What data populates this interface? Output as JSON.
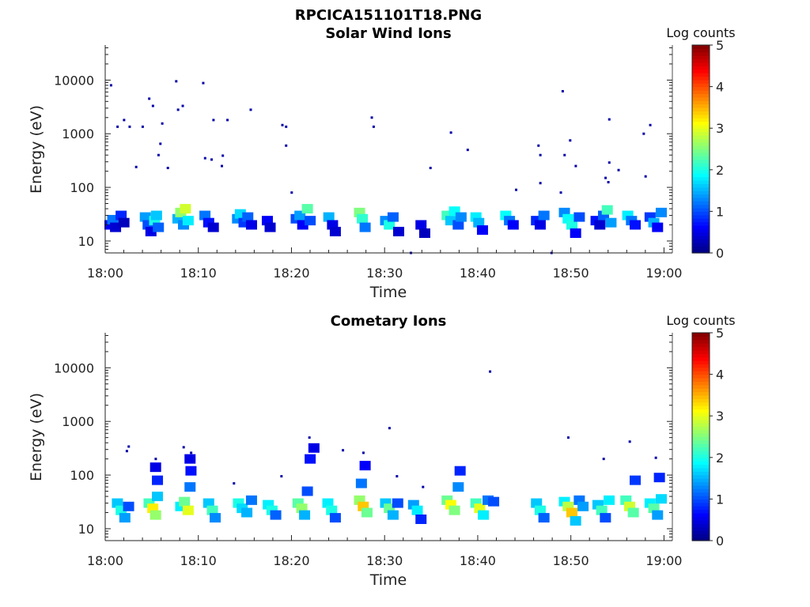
{
  "figure": {
    "title": "RPCICA151101T18.PNG"
  },
  "colorbar": {
    "label": "Log counts",
    "ticks": [
      "0",
      "1",
      "2",
      "3",
      "4",
      "5"
    ],
    "range": [
      0,
      5
    ],
    "colormap": "jet"
  },
  "chart_data": [
    {
      "type": "heatmap",
      "title": "Solar Wind Ions",
      "xlabel": "Time",
      "ylabel": "Energy (eV)",
      "x_ticks": [
        "18:00",
        "18:10",
        "18:20",
        "18:30",
        "18:40",
        "18:50",
        "19:00"
      ],
      "y_ticks": [
        "10",
        "100",
        "1000",
        "10000"
      ],
      "y_scale": "log",
      "xlim": [
        "18:00",
        "19:00"
      ],
      "ylim": [
        6,
        45000
      ],
      "colorbar_label": "Log counts",
      "colorbar_range": [
        0,
        5
      ],
      "cells": [
        {
          "t": 0.0,
          "e": 20,
          "v": 0.6
        },
        {
          "t": 0.3,
          "e": 25,
          "v": 1.2
        },
        {
          "t": 0.6,
          "e": 18,
          "v": 0.4
        },
        {
          "t": 1.2,
          "e": 30,
          "v": 0.8
        },
        {
          "t": 1.5,
          "e": 22,
          "v": 0.3
        },
        {
          "t": 3.8,
          "e": 28,
          "v": 1.4
        },
        {
          "t": 4.1,
          "e": 20,
          "v": 1.0
        },
        {
          "t": 4.4,
          "e": 15,
          "v": 0.5
        },
        {
          "t": 4.8,
          "e": 24,
          "v": 2.0
        },
        {
          "t": 5.0,
          "e": 30,
          "v": 1.6
        },
        {
          "t": 5.2,
          "e": 18,
          "v": 1.1
        },
        {
          "t": 7.3,
          "e": 26,
          "v": 1.5
        },
        {
          "t": 7.6,
          "e": 34,
          "v": 2.6
        },
        {
          "t": 7.9,
          "e": 20,
          "v": 1.3
        },
        {
          "t": 8.1,
          "e": 40,
          "v": 2.9
        },
        {
          "t": 8.4,
          "e": 24,
          "v": 1.8
        },
        {
          "t": 10.2,
          "e": 30,
          "v": 1.2
        },
        {
          "t": 10.6,
          "e": 22,
          "v": 0.7
        },
        {
          "t": 11.1,
          "e": 18,
          "v": 0.4
        },
        {
          "t": 13.7,
          "e": 26,
          "v": 1.3
        },
        {
          "t": 14.0,
          "e": 32,
          "v": 1.7
        },
        {
          "t": 14.4,
          "e": 22,
          "v": 0.9
        },
        {
          "t": 14.8,
          "e": 28,
          "v": 1.1
        },
        {
          "t": 15.2,
          "e": 20,
          "v": 0.5
        },
        {
          "t": 16.9,
          "e": 24,
          "v": 0.6
        },
        {
          "t": 17.2,
          "e": 18,
          "v": 0.4
        },
        {
          "t": 20.0,
          "e": 26,
          "v": 1.0
        },
        {
          "t": 20.4,
          "e": 30,
          "v": 1.4
        },
        {
          "t": 20.7,
          "e": 20,
          "v": 0.6
        },
        {
          "t": 21.2,
          "e": 40,
          "v": 2.3
        },
        {
          "t": 21.5,
          "e": 24,
          "v": 1.0
        },
        {
          "t": 23.5,
          "e": 28,
          "v": 1.5
        },
        {
          "t": 23.9,
          "e": 20,
          "v": 0.5
        },
        {
          "t": 24.2,
          "e": 15,
          "v": 0.4
        },
        {
          "t": 26.8,
          "e": 34,
          "v": 2.5
        },
        {
          "t": 27.1,
          "e": 26,
          "v": 2.1
        },
        {
          "t": 27.4,
          "e": 18,
          "v": 1.2
        },
        {
          "t": 29.6,
          "e": 24,
          "v": 1.3
        },
        {
          "t": 30.0,
          "e": 20,
          "v": 2.0
        },
        {
          "t": 30.4,
          "e": 28,
          "v": 1.1
        },
        {
          "t": 31.0,
          "e": 15,
          "v": 0.4
        },
        {
          "t": 33.4,
          "e": 20,
          "v": 0.5
        },
        {
          "t": 33.8,
          "e": 14,
          "v": 0.3
        },
        {
          "t": 36.2,
          "e": 30,
          "v": 2.2
        },
        {
          "t": 36.6,
          "e": 24,
          "v": 1.6
        },
        {
          "t": 37.0,
          "e": 36,
          "v": 1.9
        },
        {
          "t": 37.4,
          "e": 20,
          "v": 1.0
        },
        {
          "t": 37.7,
          "e": 28,
          "v": 1.3
        },
        {
          "t": 39.3,
          "e": 28,
          "v": 1.8
        },
        {
          "t": 39.6,
          "e": 22,
          "v": 1.5
        },
        {
          "t": 40.0,
          "e": 16,
          "v": 0.6
        },
        {
          "t": 42.5,
          "e": 30,
          "v": 1.9
        },
        {
          "t": 42.9,
          "e": 24,
          "v": 1.2
        },
        {
          "t": 43.3,
          "e": 20,
          "v": 0.6
        },
        {
          "t": 45.8,
          "e": 24,
          "v": 0.8
        },
        {
          "t": 46.2,
          "e": 20,
          "v": 0.5
        },
        {
          "t": 46.6,
          "e": 30,
          "v": 1.2
        },
        {
          "t": 48.8,
          "e": 34,
          "v": 1.3
        },
        {
          "t": 49.2,
          "e": 26,
          "v": 1.9
        },
        {
          "t": 49.6,
          "e": 20,
          "v": 2.0
        },
        {
          "t": 50.0,
          "e": 14,
          "v": 0.6
        },
        {
          "t": 50.4,
          "e": 28,
          "v": 1.0
        },
        {
          "t": 52.2,
          "e": 24,
          "v": 0.7
        },
        {
          "t": 52.6,
          "e": 20,
          "v": 0.4
        },
        {
          "t": 53.0,
          "e": 30,
          "v": 1.1
        },
        {
          "t": 53.4,
          "e": 38,
          "v": 2.2
        },
        {
          "t": 53.8,
          "e": 22,
          "v": 1.4
        },
        {
          "t": 55.6,
          "e": 30,
          "v": 1.8
        },
        {
          "t": 56.0,
          "e": 24,
          "v": 1.2
        },
        {
          "t": 56.4,
          "e": 20,
          "v": 0.7
        },
        {
          "t": 58.0,
          "e": 28,
          "v": 0.9
        },
        {
          "t": 58.4,
          "e": 22,
          "v": 1.5
        },
        {
          "t": 58.8,
          "e": 18,
          "v": 0.6
        },
        {
          "t": 59.2,
          "e": 34,
          "v": 1.3
        }
      ],
      "scatter": [
        {
          "t": 0.5,
          "e": 8000
        },
        {
          "t": 1.2,
          "e": 1350
        },
        {
          "t": 1.9,
          "e": 1800
        },
        {
          "t": 2.5,
          "e": 1350
        },
        {
          "t": 3.2,
          "e": 240
        },
        {
          "t": 3.9,
          "e": 1350
        },
        {
          "t": 4.6,
          "e": 4500
        },
        {
          "t": 5.0,
          "e": 3300
        },
        {
          "t": 5.6,
          "e": 400
        },
        {
          "t": 5.8,
          "e": 650
        },
        {
          "t": 6.0,
          "e": 1550
        },
        {
          "t": 6.6,
          "e": 230
        },
        {
          "t": 7.5,
          "e": 9500
        },
        {
          "t": 7.7,
          "e": 2800
        },
        {
          "t": 8.2,
          "e": 3300
        },
        {
          "t": 10.4,
          "e": 8800
        },
        {
          "t": 10.6,
          "e": 350
        },
        {
          "t": 11.3,
          "e": 330
        },
        {
          "t": 11.5,
          "e": 1800
        },
        {
          "t": 12.4,
          "e": 250
        },
        {
          "t": 12.5,
          "e": 390
        },
        {
          "t": 13.0,
          "e": 1800
        },
        {
          "t": 15.5,
          "e": 2800
        },
        {
          "t": 18.9,
          "e": 1450
        },
        {
          "t": 19.3,
          "e": 1350
        },
        {
          "t": 19.3,
          "e": 600
        },
        {
          "t": 19.9,
          "e": 80
        },
        {
          "t": 28.5,
          "e": 2000
        },
        {
          "t": 28.7,
          "e": 1350
        },
        {
          "t": 32.7,
          "e": 6
        },
        {
          "t": 34.8,
          "e": 230
        },
        {
          "t": 37.0,
          "e": 1050
        },
        {
          "t": 38.8,
          "e": 500
        },
        {
          "t": 44.0,
          "e": 90
        },
        {
          "t": 46.4,
          "e": 600
        },
        {
          "t": 46.6,
          "e": 400
        },
        {
          "t": 46.6,
          "e": 120
        },
        {
          "t": 47.8,
          "e": 6
        },
        {
          "t": 48.8,
          "e": 80
        },
        {
          "t": 49.0,
          "e": 6200
        },
        {
          "t": 49.2,
          "e": 400
        },
        {
          "t": 49.8,
          "e": 750
        },
        {
          "t": 50.4,
          "e": 250
        },
        {
          "t": 53.6,
          "e": 150
        },
        {
          "t": 53.9,
          "e": 125
        },
        {
          "t": 54.0,
          "e": 290
        },
        {
          "t": 54.0,
          "e": 1850
        },
        {
          "t": 55.0,
          "e": 210
        },
        {
          "t": 57.7,
          "e": 1000
        },
        {
          "t": 57.9,
          "e": 160
        },
        {
          "t": 58.4,
          "e": 1450
        }
      ]
    },
    {
      "type": "heatmap",
      "title": "Cometary Ions",
      "xlabel": "Time",
      "ylabel": "Energy (eV)",
      "x_ticks": [
        "18:00",
        "18:10",
        "18:20",
        "18:30",
        "18:40",
        "18:50",
        "19:00"
      ],
      "y_ticks": [
        "10",
        "100",
        "1000",
        "10000"
      ],
      "y_scale": "log",
      "xlim": [
        "18:00",
        "19:00"
      ],
      "ylim": [
        6,
        45000
      ],
      "colorbar_label": "Log counts",
      "colorbar_range": [
        0,
        5
      ],
      "cells": [
        {
          "t": 0.8,
          "e": 30,
          "v": 1.6
        },
        {
          "t": 1.2,
          "e": 22,
          "v": 2.0
        },
        {
          "t": 1.6,
          "e": 16,
          "v": 1.4
        },
        {
          "t": 2.0,
          "e": 26,
          "v": 1.0
        },
        {
          "t": 4.2,
          "e": 30,
          "v": 2.2
        },
        {
          "t": 4.6,
          "e": 24,
          "v": 3.2
        },
        {
          "t": 4.9,
          "e": 18,
          "v": 2.6
        },
        {
          "t": 5.1,
          "e": 40,
          "v": 1.6
        },
        {
          "t": 5.1,
          "e": 80,
          "v": 0.8
        },
        {
          "t": 4.9,
          "e": 140,
          "v": 0.5
        },
        {
          "t": 7.6,
          "e": 26,
          "v": 1.8
        },
        {
          "t": 8.0,
          "e": 32,
          "v": 2.4
        },
        {
          "t": 8.4,
          "e": 22,
          "v": 3.0
        },
        {
          "t": 8.6,
          "e": 60,
          "v": 1.2
        },
        {
          "t": 8.7,
          "e": 120,
          "v": 0.7
        },
        {
          "t": 8.6,
          "e": 200,
          "v": 0.5
        },
        {
          "t": 10.6,
          "e": 30,
          "v": 1.6
        },
        {
          "t": 11.0,
          "e": 22,
          "v": 2.2
        },
        {
          "t": 11.3,
          "e": 16,
          "v": 1.3
        },
        {
          "t": 13.8,
          "e": 30,
          "v": 2.0
        },
        {
          "t": 14.2,
          "e": 24,
          "v": 1.7
        },
        {
          "t": 14.7,
          "e": 20,
          "v": 1.5
        },
        {
          "t": 15.2,
          "e": 34,
          "v": 1.2
        },
        {
          "t": 17.0,
          "e": 28,
          "v": 1.8
        },
        {
          "t": 17.4,
          "e": 22,
          "v": 2.0
        },
        {
          "t": 17.8,
          "e": 18,
          "v": 1.1
        },
        {
          "t": 20.2,
          "e": 30,
          "v": 2.3
        },
        {
          "t": 20.6,
          "e": 24,
          "v": 2.6
        },
        {
          "t": 20.9,
          "e": 18,
          "v": 1.5
        },
        {
          "t": 21.2,
          "e": 50,
          "v": 1.0
        },
        {
          "t": 21.5,
          "e": 200,
          "v": 0.7
        },
        {
          "t": 21.9,
          "e": 320,
          "v": 0.5
        },
        {
          "t": 23.4,
          "e": 30,
          "v": 1.8
        },
        {
          "t": 23.8,
          "e": 22,
          "v": 2.0
        },
        {
          "t": 24.2,
          "e": 16,
          "v": 1.0
        },
        {
          "t": 26.8,
          "e": 34,
          "v": 2.6
        },
        {
          "t": 27.2,
          "e": 26,
          "v": 3.4
        },
        {
          "t": 27.6,
          "e": 20,
          "v": 2.4
        },
        {
          "t": 27.0,
          "e": 70,
          "v": 1.2
        },
        {
          "t": 27.4,
          "e": 150,
          "v": 0.6
        },
        {
          "t": 29.6,
          "e": 30,
          "v": 1.6
        },
        {
          "t": 30.0,
          "e": 24,
          "v": 2.4
        },
        {
          "t": 30.4,
          "e": 18,
          "v": 1.5
        },
        {
          "t": 30.9,
          "e": 30,
          "v": 1.0
        },
        {
          "t": 32.6,
          "e": 28,
          "v": 1.4
        },
        {
          "t": 33.0,
          "e": 22,
          "v": 1.8
        },
        {
          "t": 33.4,
          "e": 15,
          "v": 0.8
        },
        {
          "t": 36.2,
          "e": 34,
          "v": 2.4
        },
        {
          "t": 36.6,
          "e": 28,
          "v": 3.1
        },
        {
          "t": 37.0,
          "e": 22,
          "v": 2.5
        },
        {
          "t": 37.4,
          "e": 60,
          "v": 1.3
        },
        {
          "t": 37.6,
          "e": 120,
          "v": 0.8
        },
        {
          "t": 39.3,
          "e": 30,
          "v": 2.2
        },
        {
          "t": 39.7,
          "e": 24,
          "v": 3.0
        },
        {
          "t": 40.1,
          "e": 18,
          "v": 1.8
        },
        {
          "t": 40.6,
          "e": 34,
          "v": 1.2
        },
        {
          "t": 41.2,
          "e": 32,
          "v": 1.0
        },
        {
          "t": 45.8,
          "e": 30,
          "v": 1.6
        },
        {
          "t": 46.2,
          "e": 22,
          "v": 2.0
        },
        {
          "t": 46.6,
          "e": 16,
          "v": 1.1
        },
        {
          "t": 48.8,
          "e": 32,
          "v": 1.8
        },
        {
          "t": 49.2,
          "e": 26,
          "v": 2.8
        },
        {
          "t": 49.6,
          "e": 20,
          "v": 3.4
        },
        {
          "t": 50.0,
          "e": 14,
          "v": 1.6
        },
        {
          "t": 50.4,
          "e": 34,
          "v": 1.2
        },
        {
          "t": 50.8,
          "e": 26,
          "v": 1.4
        },
        {
          "t": 52.4,
          "e": 28,
          "v": 1.6
        },
        {
          "t": 52.8,
          "e": 22,
          "v": 2.2
        },
        {
          "t": 53.2,
          "e": 16,
          "v": 1.0
        },
        {
          "t": 53.6,
          "e": 34,
          "v": 1.8
        },
        {
          "t": 55.4,
          "e": 34,
          "v": 2.2
        },
        {
          "t": 55.8,
          "e": 26,
          "v": 2.9
        },
        {
          "t": 56.2,
          "e": 20,
          "v": 2.3
        },
        {
          "t": 56.4,
          "e": 80,
          "v": 0.9
        },
        {
          "t": 58.0,
          "e": 30,
          "v": 1.8
        },
        {
          "t": 58.4,
          "e": 24,
          "v": 2.3
        },
        {
          "t": 58.8,
          "e": 18,
          "v": 1.4
        },
        {
          "t": 59.2,
          "e": 36,
          "v": 1.7
        },
        {
          "t": 59.0,
          "e": 90,
          "v": 0.8
        }
      ],
      "scatter": [
        {
          "t": 2.2,
          "e": 280
        },
        {
          "t": 2.4,
          "e": 340
        },
        {
          "t": 5.3,
          "e": 200
        },
        {
          "t": 8.3,
          "e": 330
        },
        {
          "t": 9.1,
          "e": 260
        },
        {
          "t": 13.7,
          "e": 70
        },
        {
          "t": 18.8,
          "e": 95
        },
        {
          "t": 21.8,
          "e": 500
        },
        {
          "t": 25.4,
          "e": 290
        },
        {
          "t": 27.6,
          "e": 260
        },
        {
          "t": 30.4,
          "e": 750
        },
        {
          "t": 31.2,
          "e": 95
        },
        {
          "t": 34.0,
          "e": 60
        },
        {
          "t": 41.2,
          "e": 8500
        },
        {
          "t": 49.6,
          "e": 500
        },
        {
          "t": 53.4,
          "e": 200
        },
        {
          "t": 56.2,
          "e": 420
        },
        {
          "t": 59.0,
          "e": 210
        }
      ]
    }
  ]
}
